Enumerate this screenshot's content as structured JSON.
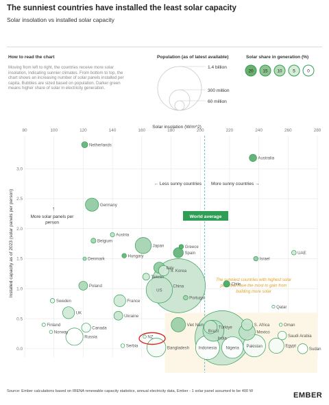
{
  "title": "The sunniest countries have installed the least solar capacity",
  "subtitle": "Solar insolation vs installed solar capacity",
  "how_to": {
    "heading": "How to read the chart",
    "text": "Moving from left to right, the countries receive more solar insolation, indicating sunnier climates. From bottom to top, the chart shows an increasing number of solar panels installed per capita. Bubbles are sized based on population. Darker green means higher share of solar in electricity generation."
  },
  "population_legend": {
    "heading": "Population (as of latest available)",
    "labels": [
      "1.4 billion",
      "300 million",
      "60 million"
    ]
  },
  "share_legend": {
    "heading": "Solar share in generation (%)",
    "items": [
      {
        "label": "20",
        "color": "#6aaf6e"
      },
      {
        "label": "15",
        "color": "#8cc38f"
      },
      {
        "label": "10",
        "color": "#b5dab6"
      },
      {
        "label": "5",
        "color": "#d8edd8"
      },
      {
        "label": "0",
        "color": "#ffffff"
      }
    ]
  },
  "annotations": {
    "less_sunny": "← Less sunny countries",
    "more_sunny": "More sunny countries →",
    "more_panels": "More solar panels per person",
    "more_panels_arrow": "↑",
    "world_average": "World average",
    "sunniest_note": "The sunniest countries with highest solar potential have the most to gain from building more solar"
  },
  "source": "Source: Ember calculations based on IRENA renewable capacity statistics, annual electricity data, Ember - 1 solar panel assumed to be 400 W",
  "logo": "EMBER",
  "colors": {
    "green": "#2e9e55",
    "axis_text": "#777777",
    "grid": "#e6e6e6",
    "world_avg_line": "#6fbcc8",
    "highlight_box": "#fdf6e6",
    "annotation_orange": "#e0a020",
    "nz_ring": "#dd2222"
  },
  "chart_data": {
    "type": "scatter",
    "xlabel": "Solar insolation (W/m^2)",
    "ylabel": "Installed capacity as of 2023 (solar panels per person)",
    "xlim": [
      80,
      280
    ],
    "ylim": [
      -0.15,
      3.55
    ],
    "xticks": [
      80,
      100,
      120,
      140,
      160,
      180,
      200,
      220,
      240,
      260,
      280
    ],
    "yticks": [
      0.0,
      0.5,
      1.0,
      1.5,
      2.0,
      2.5,
      3.0
    ],
    "ytick_labels": [
      "0.0",
      "0.5",
      "1.0",
      "1.5",
      "2.0",
      "2.5",
      "3.0"
    ],
    "world_average_x": 203,
    "grid": true,
    "points": [
      {
        "label": "Netherlands",
        "x": 121,
        "y": 3.4,
        "share": 17,
        "pop": 18
      },
      {
        "label": "Australia",
        "x": 236,
        "y": 3.18,
        "share": 18,
        "pop": 26
      },
      {
        "label": "Germany",
        "x": 126,
        "y": 2.4,
        "share": 12,
        "pop": 84
      },
      {
        "label": "Belgium",
        "x": 127,
        "y": 1.8,
        "share": 10,
        "pop": 12
      },
      {
        "label": "Austria",
        "x": 140,
        "y": 1.9,
        "share": 7,
        "pop": 9
      },
      {
        "label": "Japan",
        "x": 161,
        "y": 1.72,
        "share": 10,
        "pop": 125
      },
      {
        "label": "Greece",
        "x": 187,
        "y": 1.7,
        "share": 19,
        "pop": 10
      },
      {
        "label": "Spain",
        "x": 185,
        "y": 1.6,
        "share": 17,
        "pop": 48
      },
      {
        "label": "Denmark",
        "x": 121,
        "y": 1.5,
        "share": 9,
        "pop": 6
      },
      {
        "label": "Hungary",
        "x": 148,
        "y": 1.55,
        "share": 17,
        "pop": 10
      },
      {
        "label": "Israel",
        "x": 238,
        "y": 1.5,
        "share": 12,
        "pop": 10
      },
      {
        "label": "UAE",
        "x": 264,
        "y": 1.6,
        "share": 5,
        "pop": 10
      },
      {
        "label": "Italy",
        "x": 172,
        "y": 1.35,
        "share": 12,
        "pop": 59
      },
      {
        "label": "S. Korea",
        "x": 175,
        "y": 1.3,
        "share": 5,
        "pop": 52
      },
      {
        "label": "Taiwan",
        "x": 163,
        "y": 1.2,
        "share": 5,
        "pop": 23
      },
      {
        "label": "China",
        "x": 185,
        "y": 1.05,
        "share": 6,
        "pop": 1410
      },
      {
        "label": "Chile",
        "x": 218,
        "y": 1.08,
        "share": 20,
        "pop": 20
      },
      {
        "label": "US",
        "x": 172,
        "y": 0.98,
        "share": 6,
        "pop": 335
      },
      {
        "label": "Poland",
        "x": 120,
        "y": 1.05,
        "share": 9,
        "pop": 38
      },
      {
        "label": "Portugal",
        "x": 190,
        "y": 0.85,
        "share": 10,
        "pop": 10
      },
      {
        "label": "Sweden",
        "x": 99,
        "y": 0.8,
        "share": 2,
        "pop": 10
      },
      {
        "label": "UK",
        "x": 110,
        "y": 0.6,
        "share": 5,
        "pop": 68
      },
      {
        "label": "France",
        "x": 145,
        "y": 0.8,
        "share": 5,
        "pop": 68
      },
      {
        "label": "Ukraine",
        "x": 144,
        "y": 0.55,
        "share": 6,
        "pop": 38
      },
      {
        "label": "Qatar",
        "x": 250,
        "y": 0.7,
        "share": 1,
        "pop": 3
      },
      {
        "label": "Finland",
        "x": 93,
        "y": 0.4,
        "share": 1,
        "pop": 6
      },
      {
        "label": "Norway",
        "x": 98,
        "y": 0.28,
        "share": 0,
        "pop": 5
      },
      {
        "label": "Russia",
        "x": 114,
        "y": 0.2,
        "share": 0,
        "pop": 144
      },
      {
        "label": "Canada",
        "x": 122,
        "y": 0.35,
        "share": 1,
        "pop": 40
      },
      {
        "label": "Viet Nam",
        "x": 185,
        "y": 0.4,
        "share": 11,
        "pop": 99
      },
      {
        "label": "Türkiye",
        "x": 207,
        "y": 0.36,
        "share": 6,
        "pop": 85
      },
      {
        "label": "S. Africa",
        "x": 232,
        "y": 0.4,
        "share": 6,
        "pop": 60
      },
      {
        "label": "Oman",
        "x": 255,
        "y": 0.4,
        "share": 1,
        "pop": 5
      },
      {
        "label": "Brazil",
        "x": 209,
        "y": 0.3,
        "share": 7,
        "pop": 216
      },
      {
        "label": "India",
        "x": 215,
        "y": 0.18,
        "share": 6,
        "pop": 1430
      },
      {
        "label": "Mexico",
        "x": 232,
        "y": 0.28,
        "share": 7,
        "pop": 128
      },
      {
        "label": "Saudi Arabia",
        "x": 256,
        "y": 0.22,
        "share": 1,
        "pop": 36
      },
      {
        "label": "NZ",
        "x": 162,
        "y": 0.2,
        "share": 1,
        "pop": 5
      },
      {
        "label": "Serbia",
        "x": 147,
        "y": 0.05,
        "share": 0,
        "pop": 7
      },
      {
        "label": "Bangladesh",
        "x": 170,
        "y": 0.02,
        "share": 1,
        "pop": 172
      },
      {
        "label": "Indonesia",
        "x": 205,
        "y": 0.02,
        "share": 0,
        "pop": 277
      },
      {
        "label": "Nigeria",
        "x": 222,
        "y": 0.02,
        "share": 0,
        "pop": 223
      },
      {
        "label": "Pakistan",
        "x": 237,
        "y": 0.05,
        "share": 1,
        "pop": 240
      },
      {
        "label": "Egypt",
        "x": 252,
        "y": 0.05,
        "share": 1,
        "pop": 112
      },
      {
        "label": "Sudan",
        "x": 270,
        "y": 0.0,
        "share": 0,
        "pop": 48
      }
    ]
  }
}
